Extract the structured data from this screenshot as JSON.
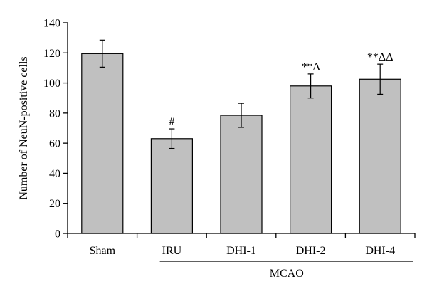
{
  "chart_data": {
    "type": "bar",
    "title": "",
    "xlabel": "",
    "ylabel": "Number of NeuN-positive cells",
    "ylim": [
      0,
      140
    ],
    "yticks": [
      0,
      20,
      40,
      60,
      80,
      100,
      120,
      140
    ],
    "grid": false,
    "legend": "none",
    "categories": [
      "Sham",
      "IRU",
      "DHI-1",
      "DHI-2",
      "DHI-4"
    ],
    "values": [
      119.5,
      63,
      78.5,
      98,
      102.5
    ],
    "error": [
      9,
      6.5,
      8,
      8,
      10
    ],
    "annotations": [
      "",
      "#",
      "",
      "**Δ",
      "**ΔΔ"
    ],
    "group": {
      "label": "MCAO",
      "categories": [
        "IRU",
        "DHI-1",
        "DHI-2",
        "DHI-4"
      ]
    },
    "bar_color": "#c0c0c0",
    "edge_color": "#000000"
  }
}
